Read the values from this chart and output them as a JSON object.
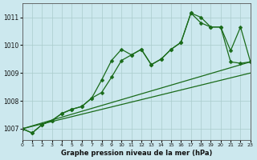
{
  "title": "Graphe pression niveau de la mer (hPa)",
  "bg_color": "#cce8ee",
  "grid_color": "#aacccc",
  "line_color": "#1a6b1a",
  "xlim": [
    0,
    23
  ],
  "ylim": [
    1006.6,
    1011.5
  ],
  "yticks": [
    1007,
    1008,
    1009,
    1010,
    1011
  ],
  "xticks": [
    0,
    1,
    2,
    3,
    4,
    5,
    6,
    7,
    8,
    9,
    10,
    11,
    12,
    13,
    14,
    15,
    16,
    17,
    18,
    19,
    20,
    21,
    22,
    23
  ],
  "series": [
    {
      "name": "line1_marked_upper",
      "x": [
        0,
        1,
        2,
        3,
        4,
        5,
        6,
        7,
        8,
        9,
        10,
        11,
        12,
        13,
        14,
        15,
        16,
        17,
        18,
        19,
        20,
        21,
        22,
        23
      ],
      "y": [
        1007.0,
        1006.85,
        1007.15,
        1007.3,
        1007.55,
        1007.7,
        1007.8,
        1008.1,
        1008.75,
        1009.45,
        1009.85,
        1009.65,
        1009.85,
        1009.3,
        1009.5,
        1009.85,
        1010.1,
        1011.15,
        1011.0,
        1010.65,
        1010.65,
        1009.4,
        1009.35,
        1009.4
      ],
      "marker": true,
      "linewidth": 0.9
    },
    {
      "name": "line2_marked_mid",
      "x": [
        0,
        1,
        2,
        3,
        4,
        5,
        6,
        7,
        8,
        9,
        10,
        11,
        12,
        13,
        14,
        15,
        16,
        17,
        18,
        19,
        20,
        21,
        22,
        23
      ],
      "y": [
        1007.0,
        1006.85,
        1007.15,
        1007.3,
        1007.55,
        1007.7,
        1007.8,
        1008.1,
        1008.3,
        1008.85,
        1009.45,
        1009.65,
        1009.85,
        1009.3,
        1009.5,
        1009.85,
        1010.1,
        1011.15,
        1010.8,
        1010.65,
        1010.65,
        1009.8,
        1010.65,
        1009.4
      ],
      "marker": true,
      "linewidth": 0.9
    },
    {
      "name": "line3_straight_lower",
      "x": [
        0,
        23
      ],
      "y": [
        1007.0,
        1009.0
      ],
      "marker": false,
      "linewidth": 0.9
    },
    {
      "name": "line4_straight_upper",
      "x": [
        0,
        23
      ],
      "y": [
        1007.0,
        1009.4
      ],
      "marker": false,
      "linewidth": 0.9
    }
  ]
}
